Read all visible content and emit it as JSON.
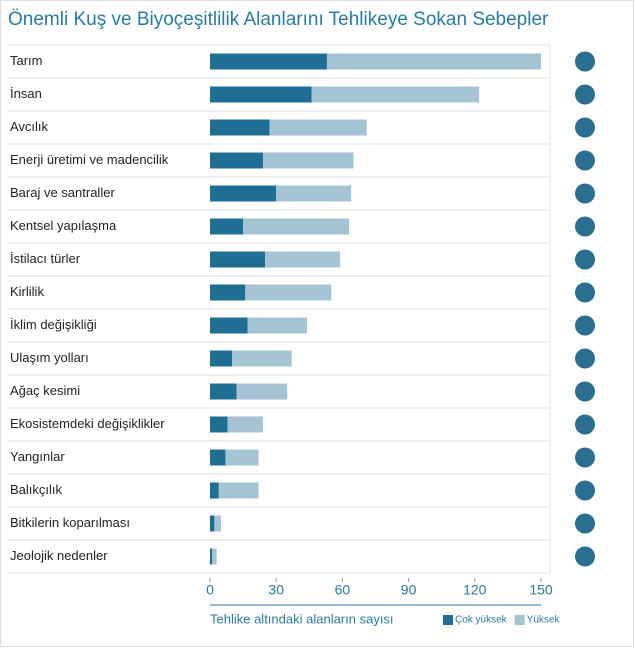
{
  "chart_data": {
    "type": "stacked_barh",
    "title": "Önemli Kuş ve Biyoçeşitlilik Alanlarını Tehlikeye Sokan Sebepler",
    "x_label": "Tehlike altındaki alanların sayısı",
    "categories": [
      "Tarım",
      "İnsan",
      "Avcılık",
      "Enerji üretimi ve madencilik",
      "Baraj ve santraller",
      "Kentsel yapılaşma",
      "İstilacı türler",
      "Kirlilik",
      "İklim değişikliği",
      "Ulaşım yolları",
      "Ağaç kesimi",
      "Ekosistemdeki değişiklikler",
      "Yangınlar",
      "Balıkçılık",
      "Bitkilerin koparılması",
      "Jeolojik nedenler"
    ],
    "series": [
      {
        "name": "Çok yüksek",
        "color": "#1f6e93",
        "values": [
          53,
          46,
          27,
          24,
          30,
          15,
          25,
          16,
          17,
          10,
          12,
          8,
          7,
          4,
          2,
          1
        ]
      },
      {
        "name": "Yüksek",
        "color": "#a4c3d3",
        "values": [
          97,
          76,
          44,
          41,
          34,
          48,
          34,
          39,
          27,
          27,
          23,
          16,
          15,
          18,
          3,
          2
        ]
      }
    ],
    "xlim": [
      0,
      150
    ],
    "xticks": [
      0,
      30,
      60,
      90,
      120,
      150
    ]
  }
}
